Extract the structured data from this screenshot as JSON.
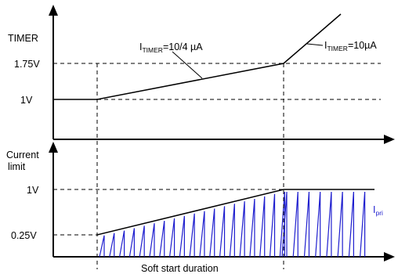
{
  "top_panel": {
    "y_axis_label": "TIMER",
    "level_upper": "1.75V",
    "level_lower": "1V",
    "annotation_slow": {
      "prefix": "I",
      "subscript": "TIMER",
      "value": "=10/4 µA"
    },
    "annotation_fast": {
      "prefix": "I",
      "subscript": "TIMER",
      "value": "=10µA"
    }
  },
  "bottom_panel": {
    "y_axis_label_line1": "Current",
    "y_axis_label_line2": "limit",
    "level_upper": "1V",
    "level_lower": "0.25V",
    "current_label": {
      "prefix": "I",
      "subscript": "pri"
    },
    "duration_label": "Soft start duration",
    "pulse_count_ramp": 19,
    "pulse_count_flat": 8
  },
  "colors": {
    "axis": "#000000",
    "guide": "#000000",
    "current_waveform": "#1f1fcf",
    "current_label": "#1f1fcf"
  }
}
